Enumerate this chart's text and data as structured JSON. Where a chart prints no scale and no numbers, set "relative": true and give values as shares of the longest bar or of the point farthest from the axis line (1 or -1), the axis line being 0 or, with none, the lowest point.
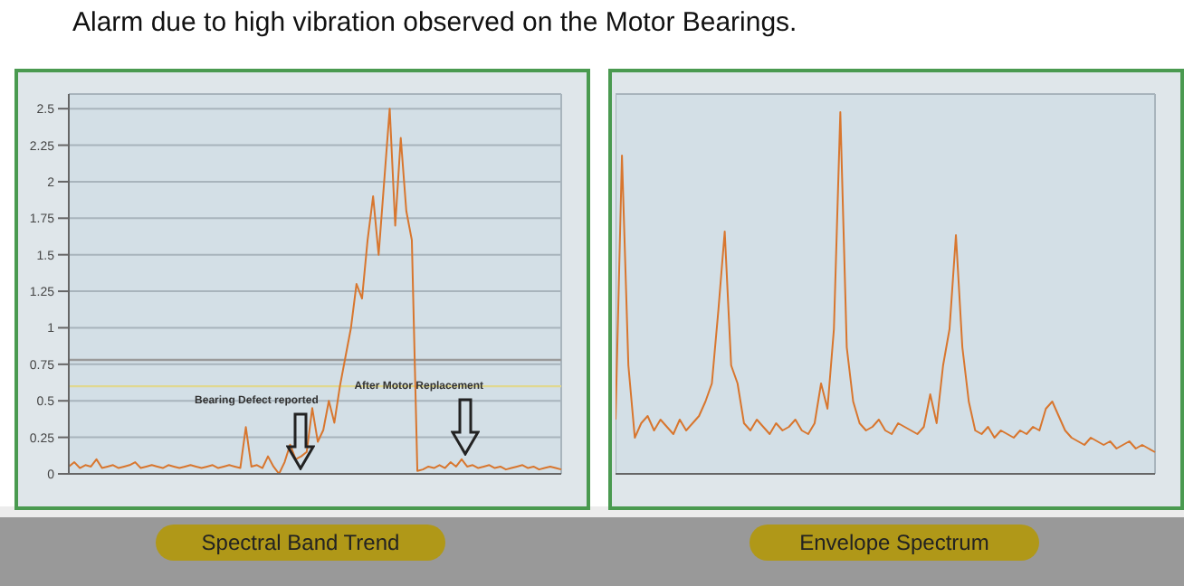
{
  "chart_data": [
    {
      "type": "line",
      "title": "Alarm due to high vibration observed on the Motor Bearings.",
      "xlabel": "Spectral Band Trend",
      "categories": [
        null,
        null,
        null,
        null,
        null,
        null,
        null,
        null,
        null,
        null,
        null,
        null,
        null,
        null,
        null,
        null,
        null,
        null,
        null,
        null,
        null,
        null,
        null,
        null,
        null,
        null,
        null,
        null,
        null,
        null,
        null,
        null,
        null,
        null,
        null,
        null,
        null,
        null,
        null,
        null,
        null,
        null,
        null,
        null,
        null,
        null,
        null,
        null,
        null,
        null,
        null,
        null,
        null,
        null,
        null,
        null,
        null,
        null,
        null,
        null,
        null,
        null,
        null,
        null,
        null,
        null,
        null,
        null,
        null,
        null,
        null,
        null,
        null,
        null,
        null,
        null,
        null,
        null,
        null,
        null,
        null,
        null,
        null,
        null,
        null,
        null,
        null,
        null,
        null,
        null
      ],
      "series": [
        {
          "color": "#d8762e",
          "values": [
            0.05,
            0.08,
            0.04,
            0.06,
            0.05,
            0.1,
            0.04,
            0.05,
            0.06,
            0.04,
            0.05,
            0.06,
            0.08,
            0.04,
            0.05,
            0.06,
            0.05,
            0.04,
            0.06,
            0.05,
            0.04,
            0.05,
            0.06,
            0.05,
            0.04,
            0.05,
            0.06,
            0.04,
            0.05,
            0.06,
            0.05,
            0.04,
            0.32,
            0.05,
            0.06,
            0.04,
            0.12,
            0.05,
            0.0,
            0.08,
            0.2,
            0.1,
            0.12,
            0.15,
            0.45,
            0.22,
            0.3,
            0.5,
            0.35,
            0.6,
            0.8,
            1.0,
            1.3,
            1.2,
            1.6,
            1.9,
            1.5,
            2.0,
            2.5,
            1.7,
            2.3,
            1.8,
            1.6,
            0.02,
            0.03,
            0.05,
            0.04,
            0.06,
            0.04,
            0.08,
            0.05,
            0.1,
            0.05,
            0.06,
            0.04,
            0.05,
            0.06,
            0.04,
            0.05,
            0.03,
            0.04,
            0.05,
            0.06,
            0.04,
            0.05,
            0.03,
            0.04,
            0.05,
            0.04,
            0.03
          ]
        }
      ],
      "ylim": [
        0,
        2.6
      ],
      "yticks": [
        0,
        0.25,
        0.5,
        0.75,
        1,
        1.25,
        1.5,
        1.75,
        2,
        2.25,
        2.5
      ],
      "grid": true,
      "tick_labels": "y",
      "marker": "none",
      "ref_lines": [
        {
          "axis": "y",
          "value": 0.78,
          "color": "#9a9a9a"
        },
        {
          "axis": "y",
          "value": 0.6,
          "color": "#e0d890"
        }
      ],
      "annotations": [
        "Bearing Defect reported",
        "After Motor Replacement"
      ]
    },
    {
      "type": "line",
      "xlabel": "Envelope Spectrum",
      "relative": true,
      "categories": [
        null,
        null,
        null,
        null,
        null,
        null,
        null,
        null,
        null,
        null,
        null,
        null,
        null,
        null,
        null,
        null,
        null,
        null,
        null,
        null,
        null,
        null,
        null,
        null,
        null,
        null,
        null,
        null,
        null,
        null,
        null,
        null,
        null,
        null,
        null,
        null,
        null,
        null,
        null,
        null,
        null,
        null,
        null,
        null,
        null,
        null,
        null,
        null,
        null,
        null,
        null,
        null,
        null,
        null,
        null,
        null,
        null,
        null,
        null,
        null,
        null,
        null,
        null,
        null,
        null,
        null,
        null,
        null,
        null,
        null,
        null,
        null,
        null,
        null,
        null,
        null,
        null,
        null,
        null,
        null,
        null,
        null,
        null,
        null,
        null
      ],
      "series": [
        {
          "color": "#d8762e",
          "values": [
            0.15,
            0.88,
            0.3,
            0.1,
            0.14,
            0.16,
            0.12,
            0.15,
            0.13,
            0.11,
            0.15,
            0.12,
            0.14,
            0.16,
            0.2,
            0.25,
            0.45,
            0.67,
            0.3,
            0.25,
            0.14,
            0.12,
            0.15,
            0.13,
            0.11,
            0.14,
            0.12,
            0.13,
            0.15,
            0.12,
            0.11,
            0.14,
            0.25,
            0.18,
            0.4,
            1.0,
            0.35,
            0.2,
            0.14,
            0.12,
            0.13,
            0.15,
            0.12,
            0.11,
            0.14,
            0.13,
            0.12,
            0.11,
            0.13,
            0.22,
            0.14,
            0.3,
            0.4,
            0.66,
            0.35,
            0.2,
            0.12,
            0.11,
            0.13,
            0.1,
            0.12,
            0.11,
            0.1,
            0.12,
            0.11,
            0.13,
            0.12,
            0.18,
            0.2,
            0.16,
            0.12,
            0.1,
            0.09,
            0.08,
            0.1,
            0.09,
            0.08,
            0.09,
            0.07,
            0.08,
            0.09,
            0.07,
            0.08,
            0.07,
            0.06
          ]
        }
      ],
      "grid": true,
      "tick_labels": false,
      "marker": "none"
    }
  ]
}
